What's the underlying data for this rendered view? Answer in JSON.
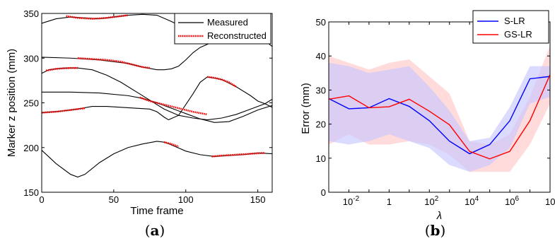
{
  "chart_data": [
    {
      "type": "line",
      "panel_label": {
        "open": "(",
        "letter": "a",
        "close": ")"
      },
      "xlabel": "Time frame",
      "ylabel": "Marker z position (mm)",
      "xlim": [
        0,
        160
      ],
      "ylim": [
        150,
        350
      ],
      "xticks": [
        0,
        50,
        100,
        150
      ],
      "yticks": [
        150,
        200,
        250,
        300,
        350
      ],
      "grid": false,
      "legend": {
        "placement": "top-right",
        "entries": [
          "Measured",
          "Reconstructed"
        ]
      },
      "series": [
        {
          "name": "Measured",
          "color": "#000000",
          "curves": [
            {
              "x": [
                0,
                10,
                20,
                30,
                40,
                50,
                60,
                70,
                80,
                90,
                100,
                110,
                120,
                130,
                140,
                150,
                160
              ],
              "y": [
                339,
                344,
                346,
                345,
                344,
                346,
                348,
                349,
                348,
                341,
                333,
                330,
                331,
                330,
                328,
                326,
                313
              ]
            },
            {
              "x": [
                0,
                20,
                40,
                60,
                70,
                80,
                85,
                90,
                95,
                100,
                105,
                110,
                120
              ],
              "y": [
                301,
                300,
                298,
                294,
                290,
                287,
                287,
                288,
                291,
                298,
                306,
                312,
                319
              ]
            },
            {
              "x": [
                0,
                5,
                15,
                25,
                35,
                45,
                55,
                65,
                75,
                85,
                95,
                105,
                115,
                125,
                135,
                145,
                155,
                160
              ],
              "y": [
                283,
                287,
                289,
                289,
                287,
                281,
                273,
                263,
                253,
                243,
                236,
                233,
                231,
                233,
                237,
                243,
                249,
                254
              ]
            },
            {
              "x": [
                0,
                20,
                40,
                60,
                70,
                80,
                90,
                100,
                110,
                120,
                130,
                140,
                150,
                160
              ],
              "y": [
                262,
                262,
                261,
                258,
                255,
                250,
                244,
                238,
                232,
                228,
                229,
                235,
                242,
                247
              ]
            },
            {
              "x": [
                0,
                15,
                25,
                35,
                45,
                55,
                65,
                75,
                80,
                85,
                88,
                95,
                105,
                110,
                115,
                125,
                135,
                145,
                150,
                155,
                160
              ],
              "y": [
                239,
                241,
                243,
                246,
                246,
                245,
                244,
                243,
                240,
                234,
                231,
                236,
                260,
                273,
                279,
                276,
                268,
                258,
                252,
                249,
                245
              ]
            },
            {
              "x": [
                0,
                10,
                20,
                25,
                30,
                40,
                50,
                60,
                70,
                80,
                85,
                90,
                100,
                110,
                120,
                130,
                140,
                150,
                160
              ],
              "y": [
                197,
                182,
                170,
                167,
                170,
                183,
                193,
                200,
                204,
                207,
                206,
                203,
                196,
                192,
                190,
                191,
                192,
                194,
                193
              ]
            }
          ]
        },
        {
          "name": "Reconstructed",
          "color": "#ff0000",
          "segments": [
            {
              "x": [
                17,
                25,
                35,
                45,
                55,
                60
              ],
              "y": [
                347,
                345,
                344,
                345,
                347,
                348
              ]
            },
            {
              "x": [
                25,
                35,
                45,
                55,
                60,
                65,
                70,
                75
              ],
              "y": [
                300,
                299,
                298,
                296,
                294,
                292,
                290,
                289
              ]
            },
            {
              "x": [
                3,
                10,
                20,
                25
              ],
              "y": [
                286,
                288,
                289,
                289
              ]
            },
            {
              "x": [
                0,
                10,
                20,
                25,
                30
              ],
              "y": [
                239,
                240,
                242,
                243,
                244
              ]
            },
            {
              "x": [
                68,
                75,
                85,
                95,
                105,
                115
              ],
              "y": [
                256,
                252,
                248,
                244,
                240,
                237
              ]
            },
            {
              "x": [
                115,
                120,
                125,
                130,
                135
              ],
              "y": [
                279,
                278,
                276,
                273,
                268
              ]
            },
            {
              "x": [
                85,
                90,
                95
              ],
              "y": [
                206,
                204,
                201
              ]
            },
            {
              "x": [
                118,
                125,
                135,
                145,
                155
              ],
              "y": [
                190,
                191,
                192,
                193,
                194
              ]
            }
          ]
        }
      ]
    },
    {
      "type": "line",
      "panel_label": {
        "open": "(",
        "letter": "b",
        "close": ")"
      },
      "xlabel": "λ",
      "ylabel": "Error (mm)",
      "xscale": "log",
      "xlim": [
        0.001,
        100000000
      ],
      "ylim": [
        0,
        50
      ],
      "xticks": [
        {
          "base": "10",
          "exp": "-2"
        },
        {
          "base": "1",
          "exp": ""
        },
        {
          "base": "10",
          "exp": "2"
        },
        {
          "base": "10",
          "exp": "4"
        },
        {
          "base": "10",
          "exp": "6"
        },
        {
          "base": "10",
          "exp": "8"
        }
      ],
      "yticks": [
        0,
        10,
        20,
        30,
        40,
        50
      ],
      "grid": false,
      "legend": {
        "placement": "top-right",
        "entries": [
          "S-LR",
          "GS-LR"
        ]
      },
      "series": [
        {
          "name": "S-LR",
          "color": "#0000ff",
          "fill": "#c8c8ff",
          "x": [
            0.001,
            0.01,
            0.1,
            1,
            10,
            100,
            1000,
            10000,
            100000,
            1000000,
            10000000,
            100000000
          ],
          "values": [
            27.5,
            24.5,
            24.8,
            27.5,
            25.2,
            21,
            15,
            11.3,
            14,
            21,
            33.3,
            34
          ],
          "upper": [
            38,
            37,
            35,
            36,
            37,
            31,
            24,
            15,
            16,
            25,
            37,
            37
          ],
          "lower": [
            15,
            14,
            15,
            17,
            15,
            13,
            8,
            6,
            8,
            13,
            26,
            28
          ]
        },
        {
          "name": "GS-LR",
          "color": "#ff0000",
          "fill": "#ffc8c8",
          "x": [
            0.001,
            0.01,
            0.1,
            1,
            10,
            100,
            1000,
            10000,
            100000,
            1000000,
            10000000,
            100000000
          ],
          "values": [
            27.3,
            28.3,
            24.8,
            25.1,
            27.3,
            23.8,
            19.8,
            12,
            9.8,
            12,
            21,
            34.5
          ],
          "upper": [
            40,
            38,
            36,
            38,
            39,
            34,
            29,
            15,
            14,
            17,
            28,
            43
          ],
          "lower": [
            14,
            17,
            14,
            14,
            15,
            14,
            11,
            6,
            6,
            6,
            14,
            26
          ]
        }
      ]
    }
  ]
}
